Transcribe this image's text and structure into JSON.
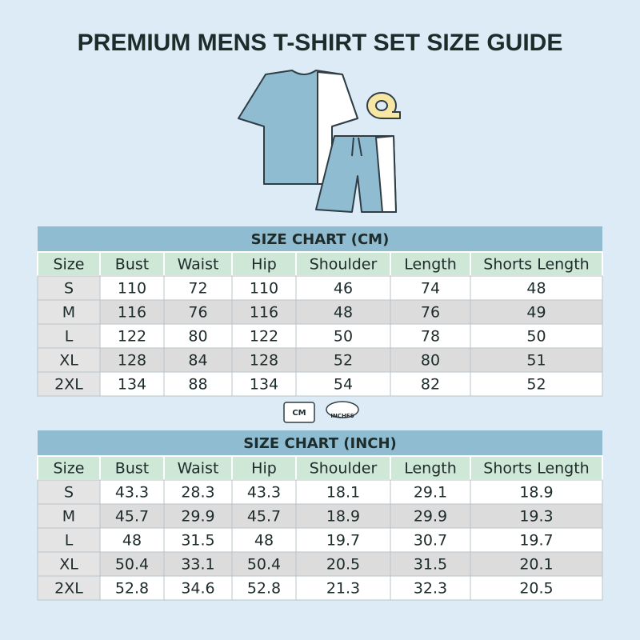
{
  "header": {
    "title": "PREMIUM MENS T-SHIRT SET SIZE GUIDE"
  },
  "tables": [
    {
      "title": "SIZE CHART (CM)",
      "columns": [
        "Size",
        "Bust",
        "Waist",
        "Hip",
        "Shoulder",
        "Length",
        "Shorts Length"
      ],
      "rows": [
        [
          "S",
          "110",
          "72",
          "110",
          "46",
          "74",
          "48"
        ],
        [
          "M",
          "116",
          "76",
          "116",
          "48",
          "76",
          "49"
        ],
        [
          "L",
          "122",
          "80",
          "122",
          "50",
          "78",
          "50"
        ],
        [
          "XL",
          "128",
          "84",
          "128",
          "52",
          "80",
          "51"
        ],
        [
          "2XL",
          "134",
          "88",
          "134",
          "54",
          "82",
          "52"
        ]
      ]
    },
    {
      "title": "SIZE CHART (INCH)",
      "columns": [
        "Size",
        "Bust",
        "Waist",
        "Hip",
        "Shoulder",
        "Length",
        "Shorts Length"
      ],
      "rows": [
        [
          "S",
          "43.3",
          "28.3",
          "43.3",
          "18.1",
          "29.1",
          "18.9"
        ],
        [
          "M",
          "45.7",
          "29.9",
          "45.7",
          "18.9",
          "29.9",
          "19.3"
        ],
        [
          "L",
          "48",
          "31.5",
          "48",
          "19.7",
          "30.7",
          "19.7"
        ],
        [
          "XL",
          "50.4",
          "33.1",
          "50.4",
          "20.5",
          "31.5",
          "20.1"
        ],
        [
          "2XL",
          "52.8",
          "34.6",
          "52.8",
          "21.3",
          "32.3",
          "20.5"
        ]
      ]
    }
  ],
  "icons": {
    "cm": "CM",
    "inches": "INCHES"
  }
}
